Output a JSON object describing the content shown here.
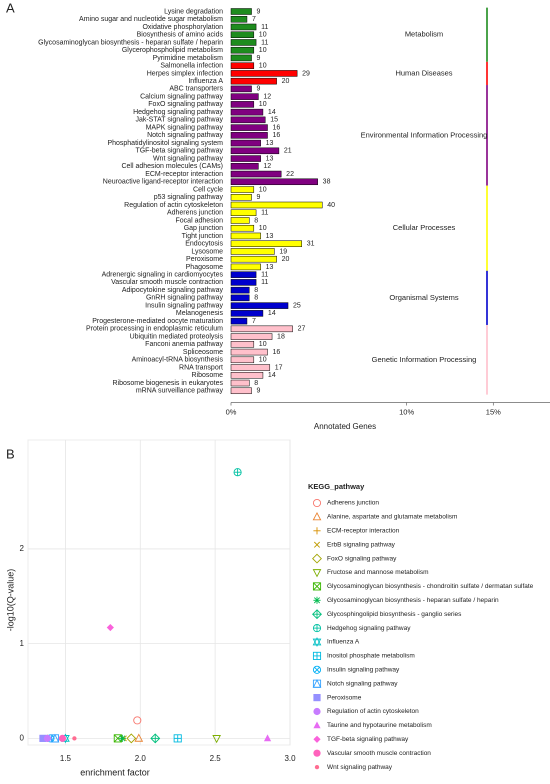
{
  "panels": [
    "A",
    "B"
  ],
  "chart_data": [
    {
      "type": "hbar-grouped",
      "xlabel": "Annotated Genes",
      "xlim": [
        0,
        153
      ],
      "xticks": [
        {
          "value": 0,
          "label": "0%"
        },
        {
          "value": 77,
          "label": "10%"
        },
        {
          "value": 115,
          "label": "15%"
        },
        {
          "value": 153,
          "label": "20%"
        }
      ],
      "groups": [
        {
          "name": "Metabolism",
          "color": "#1e8c1e",
          "categories": [
            "Lysine degradation",
            "Amino sugar and nucleotide sugar metabolism",
            "Oxidative phosphorylation",
            "Biosynthesis of amino acids",
            "Glycosaminoglycan biosynthesis - heparan sulfate / heparin",
            "Glycerophospholipid metabolism",
            "Pyrimidine metabolism"
          ],
          "values": [
            9,
            7,
            11,
            10,
            11,
            10,
            9
          ]
        },
        {
          "name": "Human Diseases",
          "color": "#ff0000",
          "categories": [
            "Salmonella infection",
            "Herpes simplex infection",
            "Influenza A"
          ],
          "values": [
            10,
            29,
            20
          ]
        },
        {
          "name": "Environmental Information Processing",
          "color": "#800080",
          "categories": [
            "ABC transporters",
            "Calcium signaling pathway",
            "FoxO signaling pathway",
            "Hedgehog signaling pathway",
            "Jak-STAT signaling pathway",
            "MAPK signaling pathway",
            "Notch signaling pathway",
            "Phosphatidylinositol signaling system",
            "TGF-beta signaling pathway",
            "Wnt signaling pathway",
            "Cell adhesion molecules (CAMs)",
            "ECM-receptor interaction",
            "Neuroactive ligand-receptor interaction"
          ],
          "values": [
            9,
            12,
            10,
            14,
            15,
            16,
            16,
            13,
            21,
            13,
            12,
            22,
            38
          ]
        },
        {
          "name": "Cellular Processes",
          "color": "#ffff00",
          "categories": [
            "Cell cycle",
            "p53 signaling pathway",
            "Regulation of actin cytoskeleton",
            "Adherens junction",
            "Focal adhesion",
            "Gap junction",
            "Tight junction",
            "Endocytosis",
            "Lysosome",
            "Peroxisome",
            "Phagosome"
          ],
          "values": [
            10,
            9,
            40,
            11,
            8,
            10,
            13,
            31,
            19,
            20,
            13
          ]
        },
        {
          "name": "Organismal Systems",
          "color": "#0000cd",
          "categories": [
            "Adrenergic signaling in cardiomyocytes",
            "Vascular smooth muscle contraction",
            "Adipocytokine signaling pathway",
            "GnRH signaling pathway",
            "Insulin signaling pathway",
            "Melanogenesis",
            "Progesterone-mediated oocyte maturation"
          ],
          "values": [
            11,
            11,
            8,
            8,
            25,
            14,
            7
          ]
        },
        {
          "name": "Genetic Information Processing",
          "color": "#ffc0cb",
          "categories": [
            "Protein processing in endoplasmic reticulum",
            "Ubiquitin mediated proteolysis",
            "Fanconi anemia pathway",
            "Spliceosome",
            "Aminoacyl-tRNA biosynthesis",
            "RNA transport",
            "Ribosome",
            "Ribosome biogenesis in eukaryotes",
            "mRNA surveillance pathway"
          ],
          "values": [
            27,
            18,
            10,
            16,
            10,
            17,
            14,
            8,
            9
          ]
        }
      ]
    },
    {
      "type": "scatter",
      "xlabel": "enrichment factor",
      "ylabel": "-log10(Q-value)",
      "legend_title": "KEGG_pathway",
      "legend": "right",
      "grid": true,
      "xlim": [
        1.25,
        3.0
      ],
      "xticks": [
        1.5,
        {
          "value": 2,
          "label": "2.0"
        },
        2.5,
        {
          "value": 3,
          "label": "3.0"
        }
      ],
      "ylim": [
        -0.07,
        3.15
      ],
      "yticks": [
        0,
        1,
        2
      ],
      "series": [
        {
          "name": "Adherens junction",
          "color": "#F8766D",
          "shape": "circle-open",
          "x": [
            1.98
          ],
          "y": [
            0.19
          ]
        },
        {
          "name": "Alanine, aspartate and glutamate metabolism",
          "color": "#EA8331",
          "shape": "triangle-open",
          "x": [
            1.99
          ],
          "y": [
            0
          ]
        },
        {
          "name": "ECM-receptor interaction",
          "color": "#D89000",
          "shape": "plus",
          "x": [
            1.38
          ],
          "y": [
            0
          ]
        },
        {
          "name": "ErbB signaling pathway",
          "color": "#C09B00",
          "shape": "cross",
          "x": [
            1.89
          ],
          "y": [
            0
          ]
        },
        {
          "name": "FoxO signaling pathway",
          "color": "#A3A500",
          "shape": "diamond-open",
          "x": [
            1.94
          ],
          "y": [
            0
          ]
        },
        {
          "name": "Fructose and mannose metabolism",
          "color": "#7CAE00",
          "shape": "triangle-down-open",
          "x": [
            2.51
          ],
          "y": [
            0
          ]
        },
        {
          "name": "Glycosaminoglycan biosynthesis - chondroitin sulfate / dermatan sulfate",
          "color": "#39B600",
          "shape": "square-cross",
          "x": [
            1.85
          ],
          "y": [
            0
          ]
        },
        {
          "name": "Glycosaminoglycan biosynthesis - heparan sulfate / heparin",
          "color": "#00BB4E",
          "shape": "asterisk",
          "x": [
            1.88
          ],
          "y": [
            0
          ]
        },
        {
          "name": "Glycosphingolipid biosynthesis - ganglio series",
          "color": "#00BF7D",
          "shape": "diamond-plus",
          "x": [
            2.1
          ],
          "y": [
            0
          ]
        },
        {
          "name": "Hedgehog signaling pathway",
          "color": "#00C1A3",
          "shape": "circle-plus",
          "x": [
            2.65
          ],
          "y": [
            2.81
          ]
        },
        {
          "name": "Influenza A",
          "color": "#00BFC4",
          "shape": "hourglass",
          "x": [
            1.5
          ],
          "y": [
            0
          ]
        },
        {
          "name": "Inositol phosphate metabolism",
          "color": "#00BAE0",
          "shape": "square-plus",
          "x": [
            2.25
          ],
          "y": [
            0
          ]
        },
        {
          "name": "Insulin signaling pathway",
          "color": "#00B0F6",
          "shape": "circle-cross",
          "x": [
            1.4
          ],
          "y": [
            0
          ]
        },
        {
          "name": "Notch signaling pathway",
          "color": "#35A2FF",
          "shape": "square-triangle",
          "x": [
            1.43
          ],
          "y": [
            0
          ]
        },
        {
          "name": "Peroxisome",
          "color": "#9590FF",
          "shape": "square-filled",
          "x": [
            1.35
          ],
          "y": [
            0
          ]
        },
        {
          "name": "Regulation of actin cytoskeleton",
          "color": "#C77CFF",
          "shape": "circle-filled",
          "x": [
            1.38
          ],
          "y": [
            0
          ]
        },
        {
          "name": "Taurine and hypotaurine metabolism",
          "color": "#E76BF3",
          "shape": "triangle-filled",
          "x": [
            2.85
          ],
          "y": [
            0
          ]
        },
        {
          "name": "TGF-beta signaling pathway",
          "color": "#FA62DB",
          "shape": "diamond-filled",
          "x": [
            1.8
          ],
          "y": [
            1.17
          ]
        },
        {
          "name": "Vascular smooth muscle contraction",
          "color": "#FF62BC",
          "shape": "circle-filled",
          "x": [
            1.48
          ],
          "y": [
            0
          ]
        },
        {
          "name": "Wnt signaling pathway",
          "color": "#FF6C91",
          "shape": "dot",
          "x": [
            1.56
          ],
          "y": [
            0
          ]
        }
      ]
    }
  ]
}
